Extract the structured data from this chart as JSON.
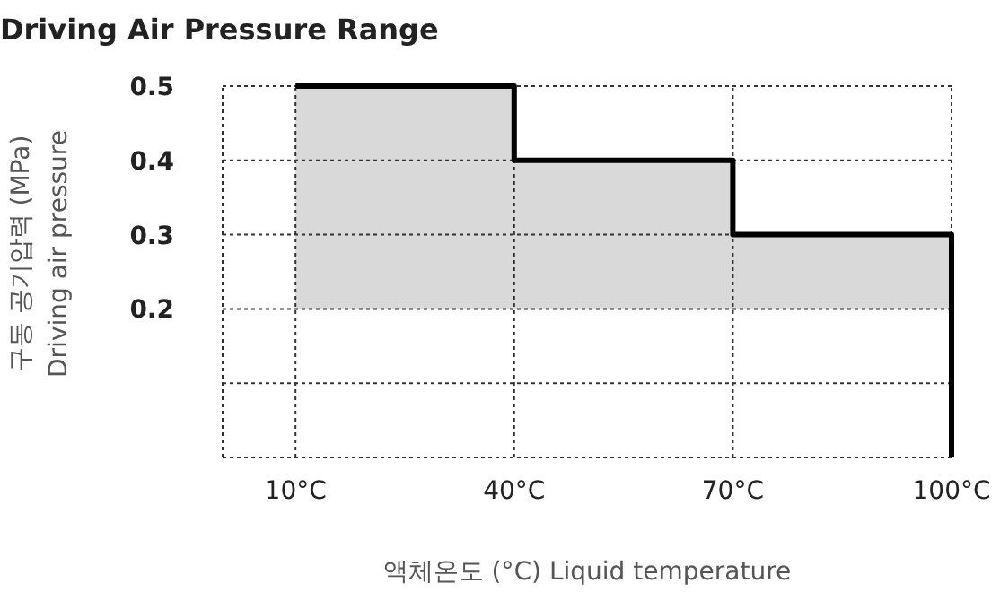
{
  "chart_data": {
    "type": "line",
    "title": "Driving Air Pressure Range",
    "xlabel": "액체온도 (°C) Liquid temperature",
    "ylabel": "구동 공기압력 (MPa)\nDriving air pressure",
    "xlim": [
      0,
      100
    ],
    "ylim": [
      0,
      0.5
    ],
    "xticks": [
      {
        "value": 10,
        "label": "10°C"
      },
      {
        "value": 40,
        "label": "40°C"
      },
      {
        "value": 70,
        "label": "70°C"
      },
      {
        "value": 100,
        "label": "100°C"
      }
    ],
    "yticks": [
      {
        "value": 0.1,
        "label": null
      },
      0.2,
      0.3,
      0.4,
      0.5
    ],
    "grid": true,
    "series": [
      {
        "color": "#000000",
        "x": [
          10,
          40,
          40,
          70,
          70,
          100,
          100
        ],
        "values": [
          0.5,
          0.5,
          0.4,
          0.4,
          0.3,
          0.3,
          0
        ],
        "lower": [
          0.2,
          0.2,
          0.2,
          0.2,
          0.2,
          0.2,
          null
        ],
        "upper": [
          0.5,
          0.5,
          0.4,
          0.4,
          0.3,
          0.3,
          null
        ]
      }
    ]
  }
}
